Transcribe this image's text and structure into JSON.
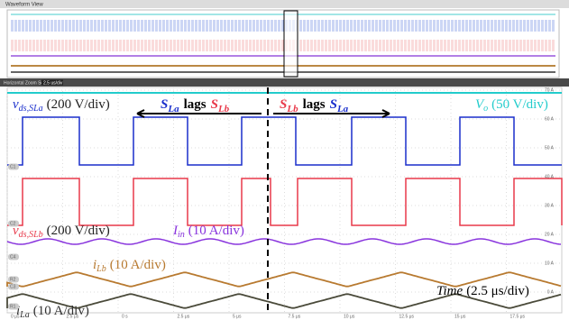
{
  "header": {
    "title": "Waveform View"
  },
  "toolbar": {
    "zoom_label": "Horizontal Zoom Scale",
    "zoom_value": "2.5 us/div"
  },
  "annotations": {
    "vds_sla": {
      "symbol": "v",
      "sub": "ds,SLa",
      "unit": "(200 V/div)"
    },
    "vds_slb": {
      "symbol": "v",
      "sub": "ds,SLb",
      "unit": "(200 V/div)"
    },
    "vo": {
      "symbol": "V",
      "sub": "o",
      "unit": "(50 V/div)"
    },
    "iin": {
      "symbol": "I",
      "sub": "in",
      "unit": "(10 A/div)"
    },
    "ilb": {
      "symbol": "i",
      "sub": "Lb",
      "unit": "(10 A/div)"
    },
    "ila": {
      "symbol": "i",
      "sub": "La",
      "unit": "(10 A/div)"
    },
    "lag1": {
      "a": "S",
      "a_sub": "La",
      "mid": "lags",
      "b": "S",
      "b_sub": "Lb"
    },
    "lag2": {
      "a": "S",
      "a_sub": "Lb",
      "mid": "lags",
      "b": "S",
      "b_sub": "La"
    },
    "time": {
      "symbol": "Time",
      "unit": "(2.5 μs/div)"
    }
  },
  "x_axis_labels": [
    "0 μs",
    "2.5 μs",
    "0 s",
    "2.5 μs",
    "5 μs",
    "7.5 μs",
    "10 μs",
    "12.5 μs",
    "15 μs",
    "17.5 μs"
  ],
  "right_labels": [
    "70 A",
    "60 A",
    "50 A",
    "40 A",
    "30 A",
    "20 A",
    "10 A",
    "0 A"
  ],
  "channels": [
    "C1",
    "C2",
    "C4",
    "R2",
    "C3",
    "R1"
  ]
}
